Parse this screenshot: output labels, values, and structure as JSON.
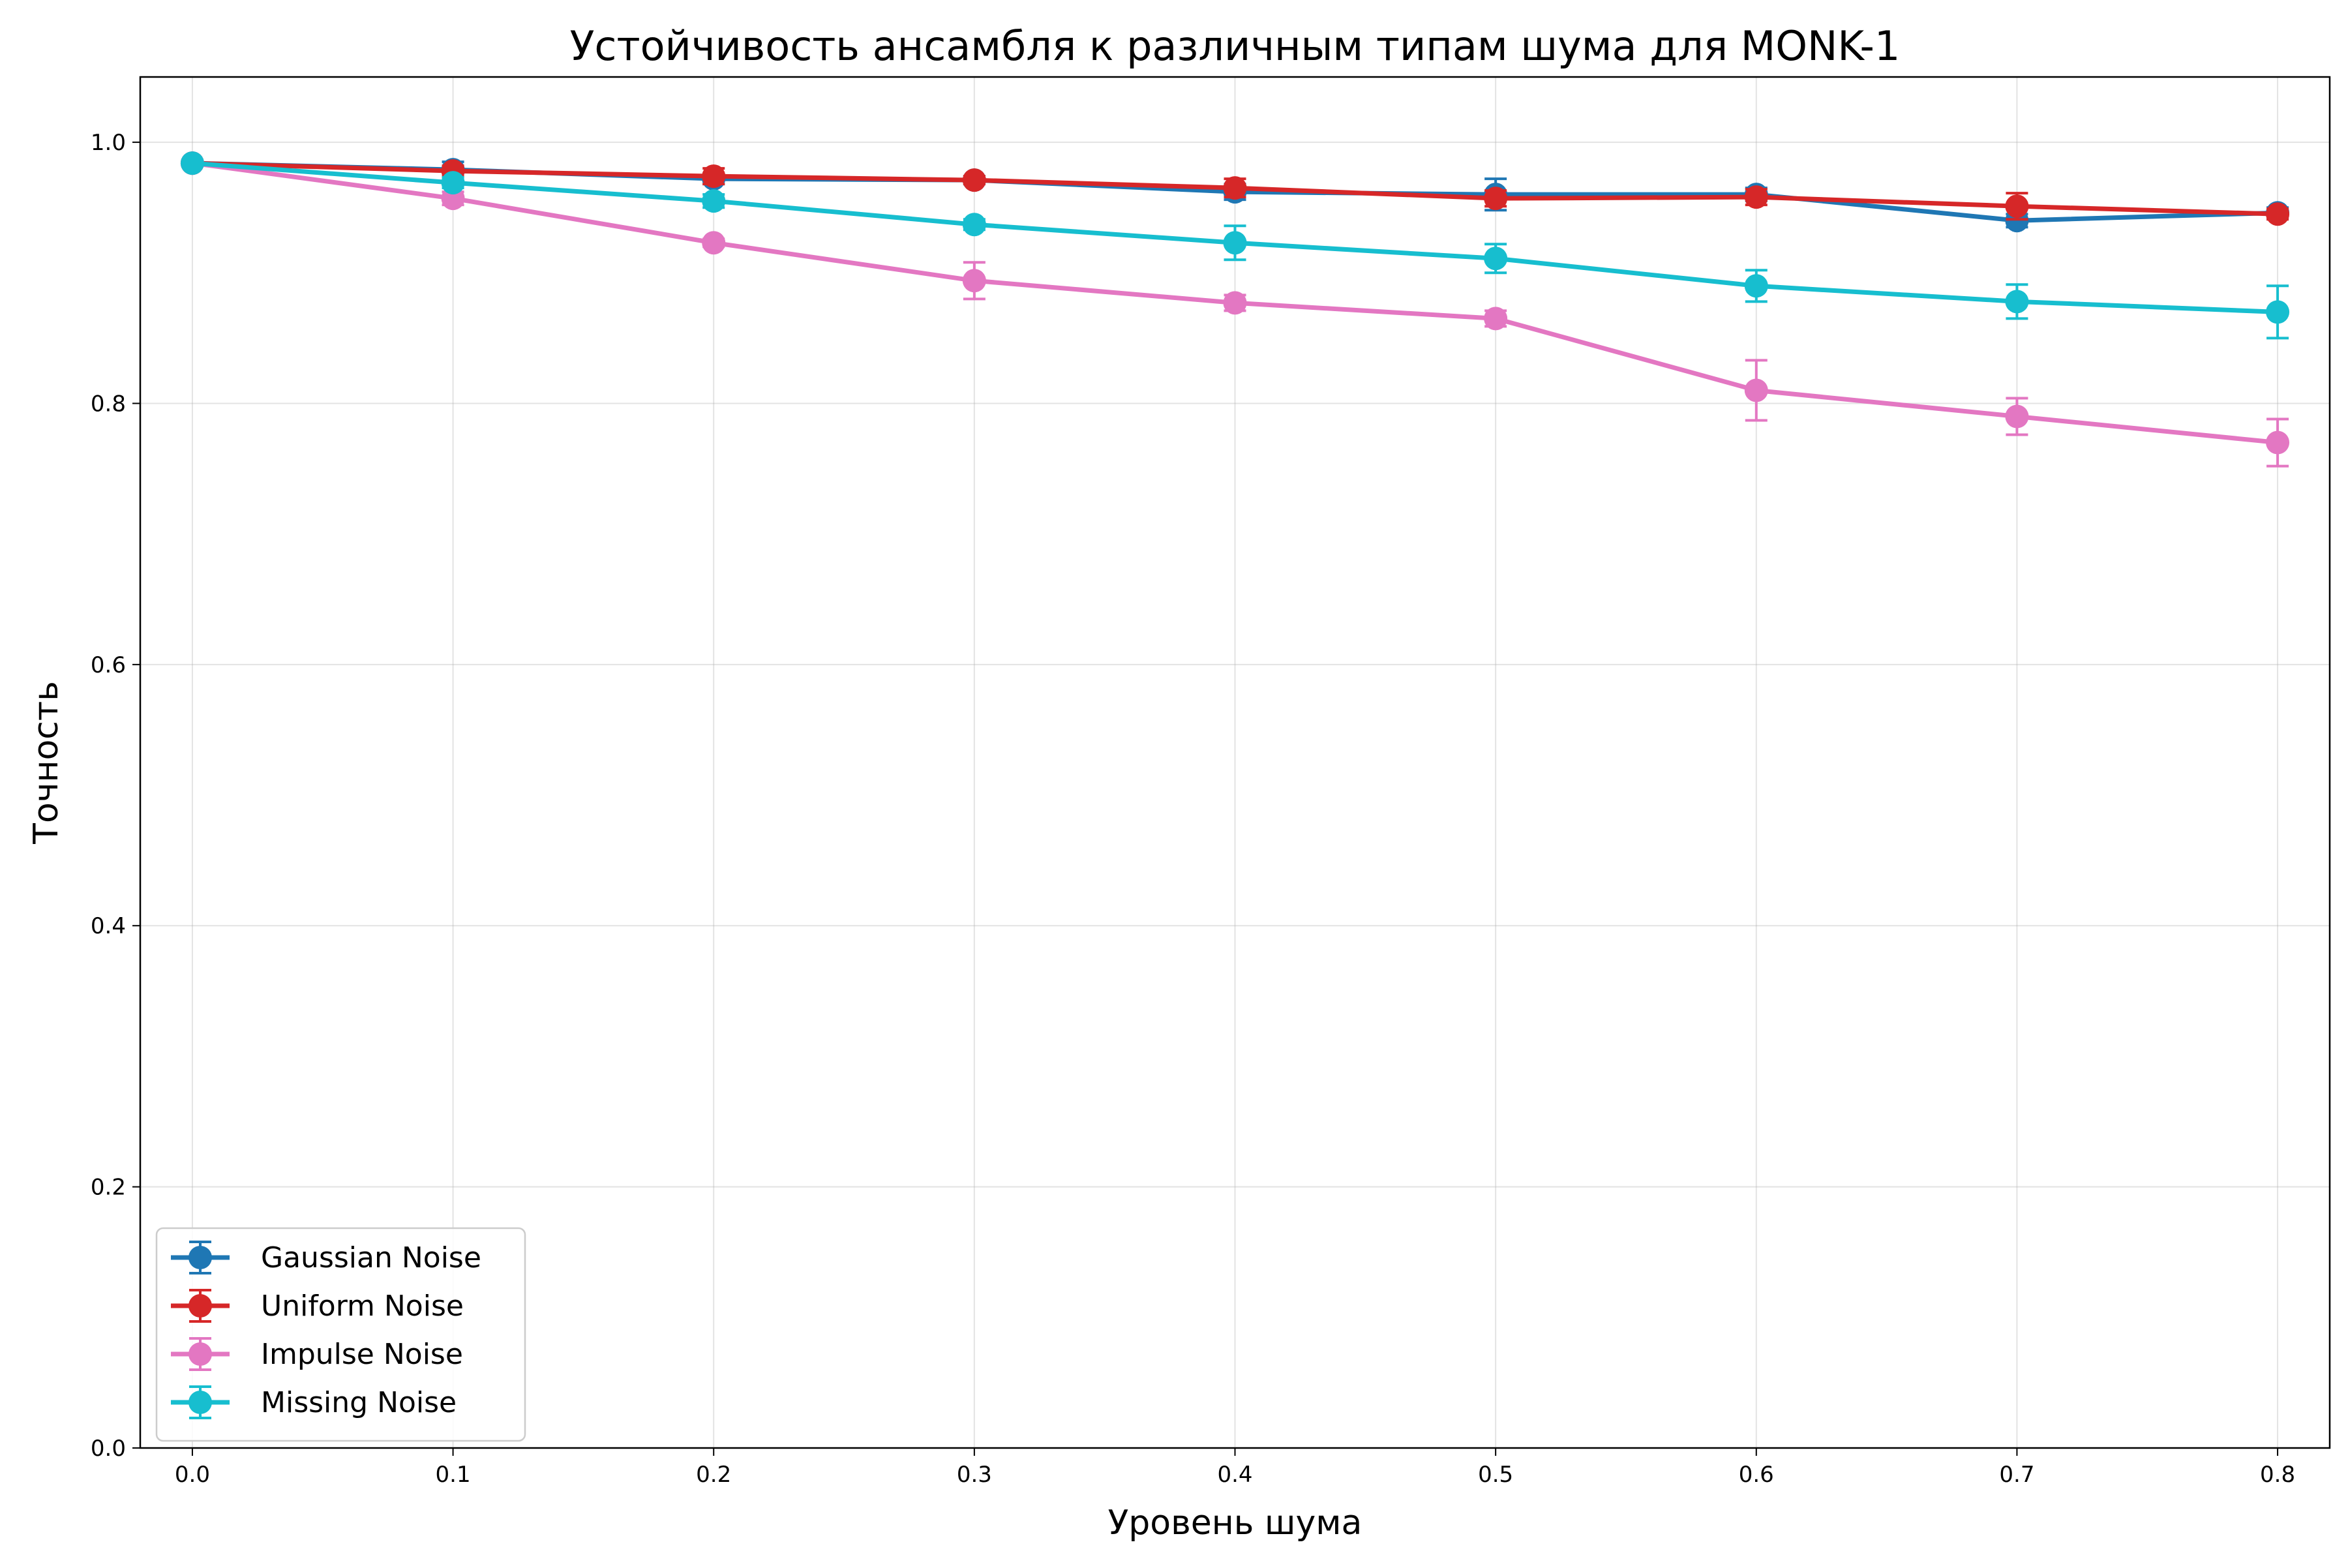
{
  "chart_data": {
    "type": "line",
    "title": "Устойчивость ансамбля к различным типам шума для MONK-1",
    "xlabel": "Уровень шума",
    "ylabel": "Точность",
    "x": [
      0.0,
      0.1,
      0.2,
      0.3,
      0.4,
      0.5,
      0.6,
      0.7,
      0.8
    ],
    "x_tick_labels": [
      "0.0",
      "0.1",
      "0.2",
      "0.3",
      "0.4",
      "0.5",
      "0.6",
      "0.7",
      "0.8"
    ],
    "y_ticks": [
      0.0,
      0.2,
      0.4,
      0.6,
      0.8,
      1.0
    ],
    "y_tick_labels": [
      "0.0",
      "0.2",
      "0.4",
      "0.6",
      "0.8",
      "1.0"
    ],
    "xlim": [
      -0.02,
      0.82
    ],
    "ylim": [
      0.0,
      1.05
    ],
    "grid": true,
    "legend_position": "lower-left",
    "series": [
      {
        "name": "Gaussian Noise",
        "color": "#1f77b4",
        "values": [
          0.984,
          0.979,
          0.972,
          0.971,
          0.962,
          0.96,
          0.96,
          0.94,
          0.946
        ],
        "errors": [
          0.002,
          0.006,
          0.004,
          0.003,
          0.006,
          0.012,
          0.005,
          0.005,
          0.004
        ]
      },
      {
        "name": "Uniform Noise",
        "color": "#d62728",
        "values": [
          0.984,
          0.978,
          0.974,
          0.971,
          0.965,
          0.957,
          0.958,
          0.951,
          0.945
        ],
        "errors": [
          0.002,
          0.004,
          0.006,
          0.003,
          0.007,
          0.006,
          0.006,
          0.01,
          0.004
        ]
      },
      {
        "name": "Impulse Noise",
        "color": "#e377c2",
        "values": [
          0.984,
          0.957,
          0.923,
          0.894,
          0.877,
          0.865,
          0.81,
          0.79,
          0.77
        ],
        "errors": [
          0.002,
          0.005,
          0.003,
          0.014,
          0.006,
          0.006,
          0.023,
          0.014,
          0.018
        ]
      },
      {
        "name": "Missing Noise",
        "color": "#17becf",
        "values": [
          0.984,
          0.969,
          0.955,
          0.937,
          0.923,
          0.911,
          0.89,
          0.878,
          0.87
        ],
        "errors": [
          0.002,
          0.004,
          0.005,
          0.004,
          0.013,
          0.011,
          0.012,
          0.013,
          0.02
        ]
      }
    ]
  }
}
